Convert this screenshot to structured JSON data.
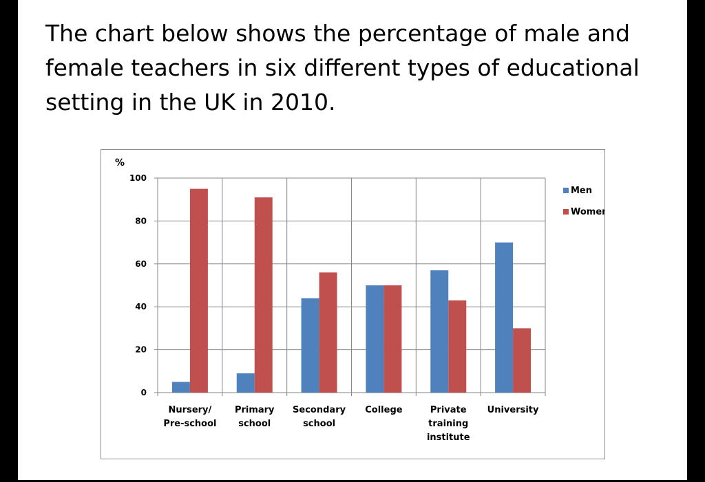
{
  "heading": "The chart below shows the percentage of male and female teachers in six different types of educational setting in the UK in 2010.",
  "chart_data": {
    "type": "bar",
    "title": "",
    "xlabel": "",
    "ylabel": "%",
    "ylim": [
      0,
      100
    ],
    "yticks": [
      0,
      20,
      40,
      60,
      80,
      100
    ],
    "grid": true,
    "legend_position": "right",
    "categories": [
      [
        "Nursery/",
        "Pre-school"
      ],
      [
        "Primary",
        "school"
      ],
      [
        "Secondary",
        "school"
      ],
      [
        "College"
      ],
      [
        "Private",
        "training",
        "institute"
      ],
      [
        "University"
      ]
    ],
    "series": [
      {
        "name": "Men",
        "color": "#4f81bd",
        "values": [
          5,
          9,
          44,
          50,
          57,
          70
        ]
      },
      {
        "name": "Women",
        "color": "#c0504d",
        "values": [
          95,
          91,
          56,
          50,
          43,
          30
        ]
      }
    ]
  }
}
